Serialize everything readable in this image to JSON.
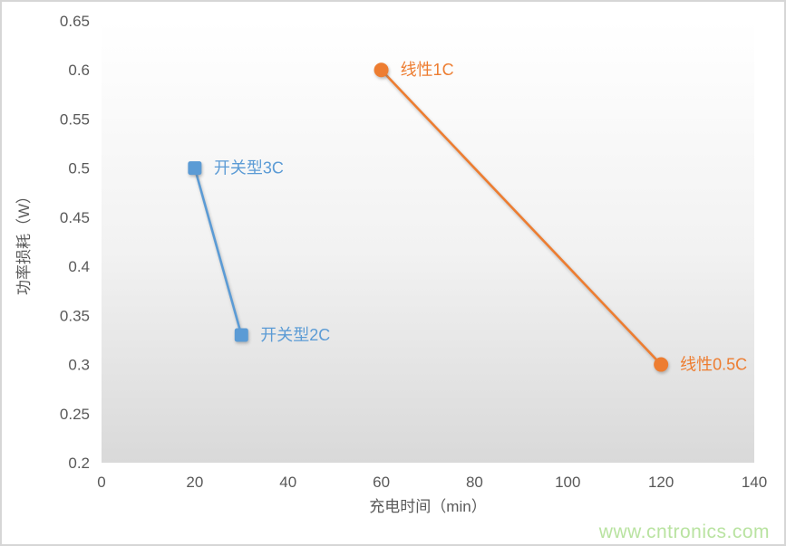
{
  "watermark": {
    "text": "www.cntronics.com",
    "color": "#b9e3a1"
  },
  "colors": {
    "frame_border": "#d6d6d6",
    "axis_text": "#595959",
    "plot_bg_top": "#ffffff",
    "plot_bg_mid": "#f2f2f2",
    "plot_bg_bottom": "#d9d9d9",
    "series_switching": "#5B9BD5",
    "series_linear": "#ED7D31"
  },
  "chart_data": {
    "type": "line",
    "title": "",
    "xlabel": "充电时间（min）",
    "ylabel": "功率损耗（W）",
    "xlim": [
      0,
      140
    ],
    "ylim": [
      0.2,
      0.65
    ],
    "x_ticks": [
      0,
      20,
      40,
      60,
      80,
      100,
      120,
      140
    ],
    "y_ticks": [
      0.65,
      0.6,
      0.55,
      0.5,
      0.45,
      0.4,
      0.35,
      0.3,
      0.25,
      0.2
    ],
    "grid": false,
    "legend_position": "none",
    "plot_background": "vertical gradient white to gray",
    "series": [
      {
        "id": "switching",
        "name": "开关型",
        "color": "#5B9BD5",
        "marker": "square",
        "points": [
          {
            "x": 20,
            "y": 0.5,
            "label": "开关型3C"
          },
          {
            "x": 30,
            "y": 0.33,
            "label": "开关型2C"
          }
        ]
      },
      {
        "id": "linear",
        "name": "线性",
        "color": "#ED7D31",
        "marker": "circle",
        "points": [
          {
            "x": 60,
            "y": 0.6,
            "label": "线性1C"
          },
          {
            "x": 120,
            "y": 0.3,
            "label": "线性0.5C"
          }
        ]
      }
    ]
  }
}
